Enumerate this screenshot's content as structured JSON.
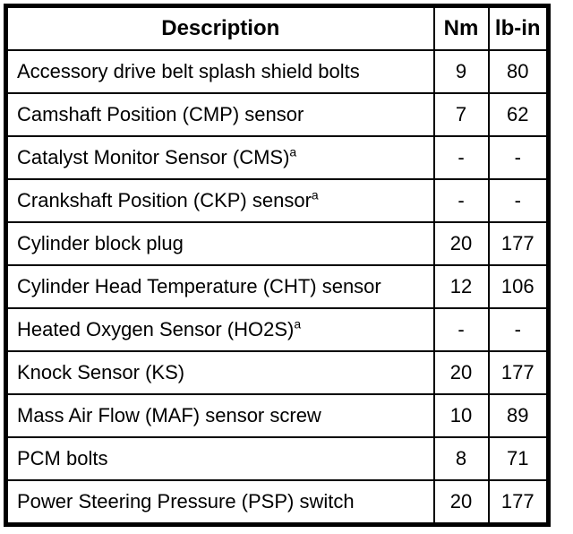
{
  "table": {
    "columns": [
      {
        "label": "Description"
      },
      {
        "label": "Nm"
      },
      {
        "label": "lb-in"
      }
    ],
    "rows": [
      {
        "description": "Accessory drive belt splash shield bolts",
        "note": "",
        "nm": "9",
        "lb_in": "80"
      },
      {
        "description": "Camshaft Position (CMP) sensor",
        "note": "",
        "nm": "7",
        "lb_in": "62"
      },
      {
        "description": "Catalyst Monitor Sensor (CMS)",
        "note": "a",
        "nm": "-",
        "lb_in": "-"
      },
      {
        "description": "Crankshaft Position (CKP) sensor",
        "note": "a",
        "nm": "-",
        "lb_in": "-"
      },
      {
        "description": "Cylinder block plug",
        "note": "",
        "nm": "20",
        "lb_in": "177"
      },
      {
        "description": "Cylinder Head Temperature (CHT) sensor",
        "note": "",
        "nm": "12",
        "lb_in": "106"
      },
      {
        "description": "Heated Oxygen Sensor (HO2S)",
        "note": "a",
        "nm": "-",
        "lb_in": "-"
      },
      {
        "description": "Knock Sensor (KS)",
        "note": "",
        "nm": "20",
        "lb_in": "177"
      },
      {
        "description": "Mass Air Flow (MAF) sensor screw",
        "note": "",
        "nm": "10",
        "lb_in": "89"
      },
      {
        "description": "PCM bolts",
        "note": "",
        "nm": "8",
        "lb_in": "71"
      },
      {
        "description": "Power Steering Pressure (PSP) switch",
        "note": "",
        "nm": "20",
        "lb_in": "177"
      }
    ],
    "colors": {
      "border": "#000000",
      "background": "#ffffff",
      "text": "#000000"
    }
  }
}
